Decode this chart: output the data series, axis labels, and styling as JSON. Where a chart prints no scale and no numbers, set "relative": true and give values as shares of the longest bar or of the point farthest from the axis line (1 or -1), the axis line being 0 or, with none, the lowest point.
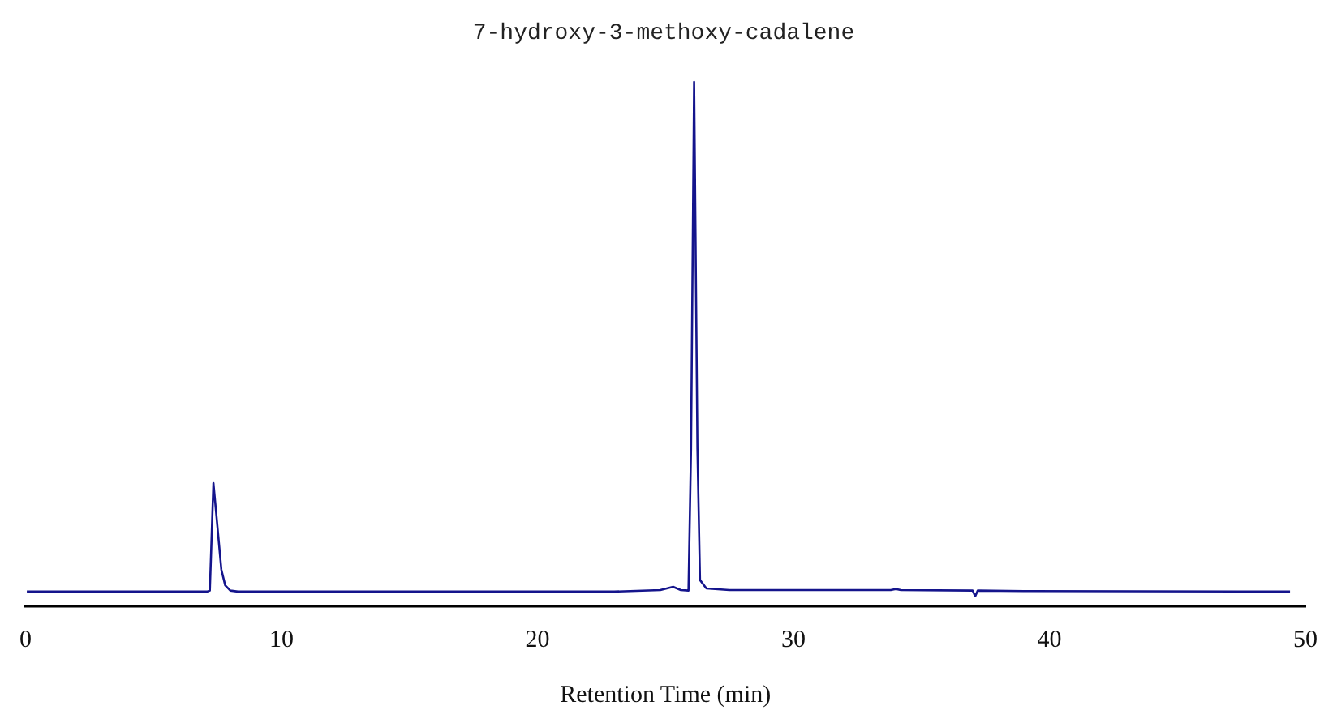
{
  "chart_data": {
    "type": "line",
    "title": "7-hydroxy-3-methoxy-cadalene",
    "xlabel": "Retention Time (min)",
    "relative": true,
    "x": [
      0.05,
      7.1,
      7.2,
      7.34,
      7.5,
      7.65,
      7.8,
      8.0,
      8.3,
      23,
      24.8,
      25.3,
      25.6,
      25.9,
      26.0,
      26.12,
      26.25,
      26.35,
      26.6,
      27.5,
      33.8,
      34,
      34.2,
      37.0,
      37.1,
      37.2,
      39,
      49.4
    ],
    "series": [
      {
        "color": "#14148c",
        "values": [
          0.028,
          0.028,
          0.03,
          0.235,
          0.15,
          0.07,
          0.04,
          0.03,
          0.028,
          0.028,
          0.031,
          0.037,
          0.031,
          0.03,
          0.3,
          1,
          0.3,
          0.05,
          0.034,
          0.031,
          0.031,
          0.033,
          0.031,
          0.03,
          0.019,
          0.03,
          0.029,
          0.028
        ]
      }
    ],
    "xlim": [
      0,
      50
    ],
    "xticks": [
      0,
      10,
      20,
      30,
      40,
      50
    ],
    "grid": false,
    "legend": false,
    "marker": "none",
    "line_style": "solid",
    "tick_labels": "x"
  }
}
